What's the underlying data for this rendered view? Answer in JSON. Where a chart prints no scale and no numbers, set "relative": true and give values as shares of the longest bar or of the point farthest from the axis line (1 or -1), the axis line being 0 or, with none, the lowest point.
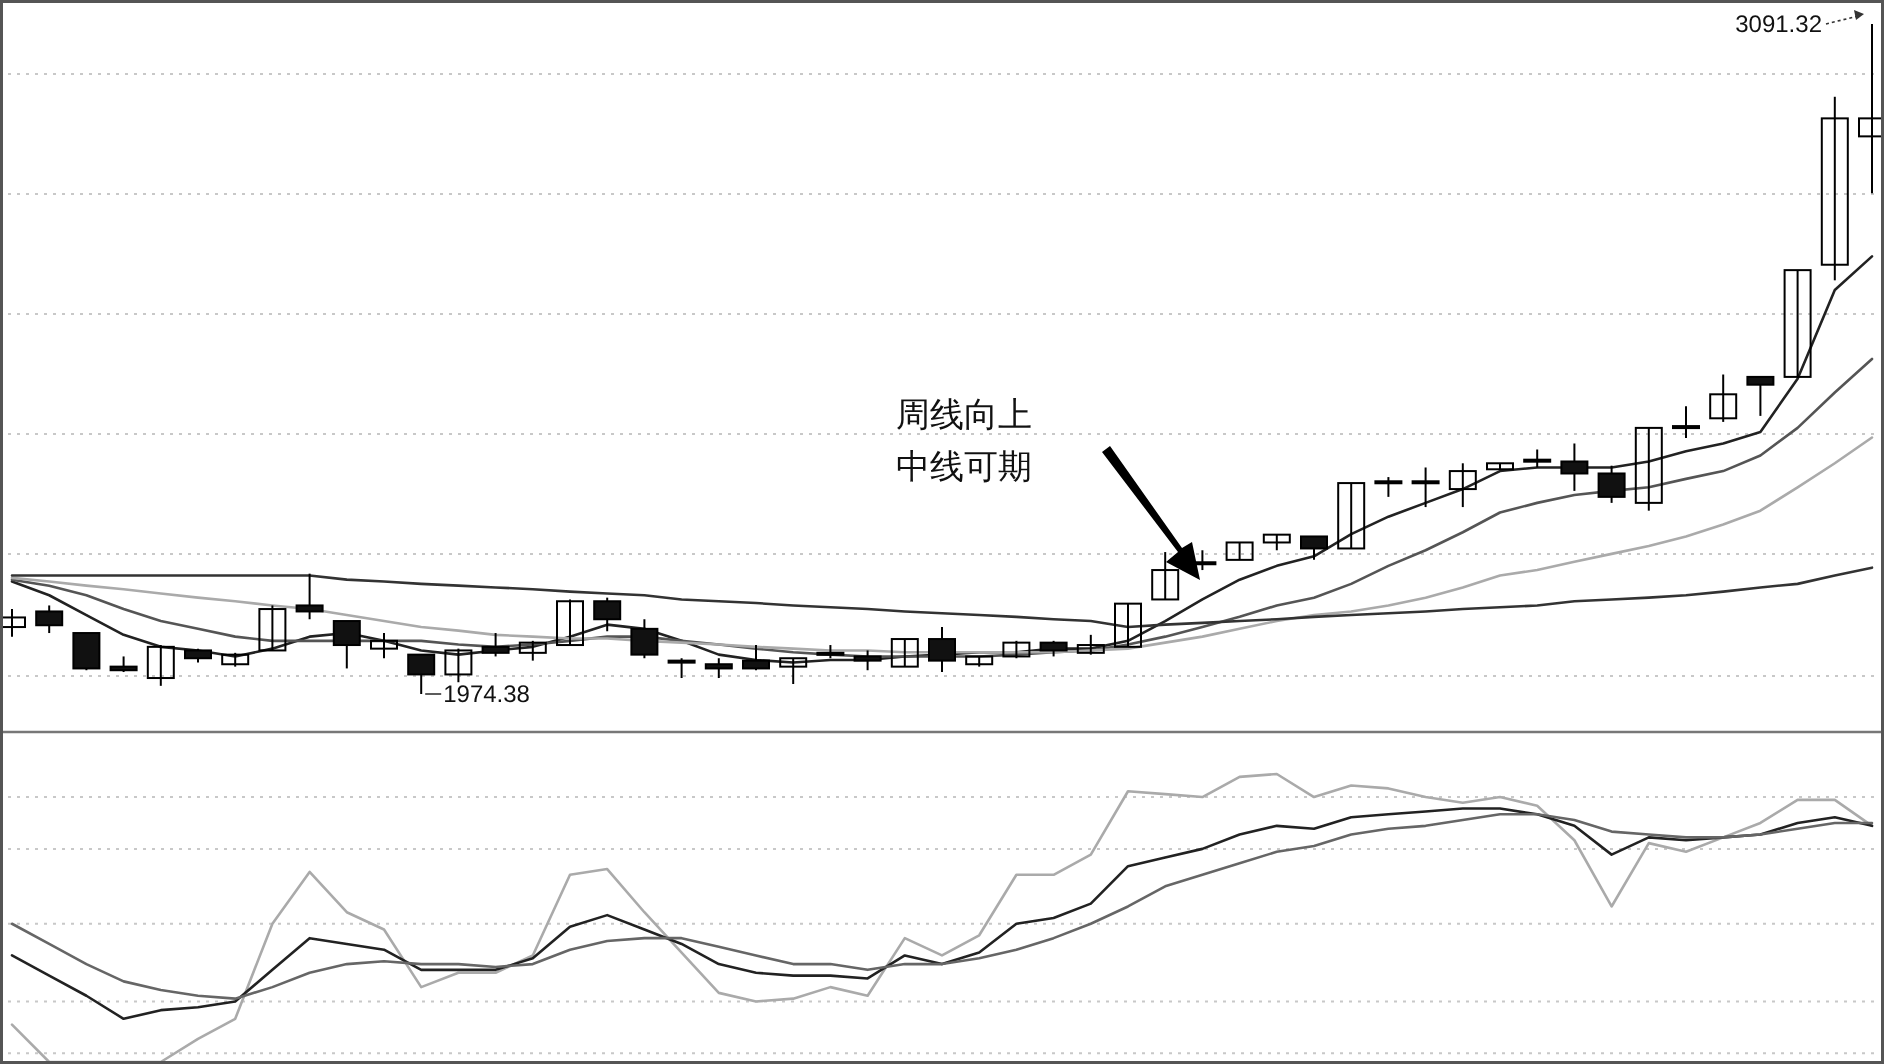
{
  "chart_data": [
    {
      "type": "candlestick",
      "categories": [
        null,
        null,
        null,
        null,
        null,
        null,
        null,
        null,
        null,
        null,
        null,
        null,
        null,
        null,
        null,
        null,
        null,
        null,
        null,
        null,
        null,
        null,
        null,
        null,
        null,
        null,
        null,
        null,
        null,
        null,
        null,
        null,
        null,
        null,
        null,
        null,
        null,
        null,
        null,
        null,
        null,
        null,
        null,
        null,
        null,
        null,
        null,
        null,
        null,
        null,
        null
      ],
      "ohlc": [
        [
          2086,
          2116,
          2070,
          2102
        ],
        [
          2112,
          2122,
          2076,
          2089
        ],
        [
          2076,
          2076,
          2014,
          2017
        ],
        [
          2020,
          2037,
          2011,
          2014
        ],
        [
          2001,
          2056,
          1988,
          2053
        ],
        [
          2047,
          2050,
          2027,
          2034
        ],
        [
          2024,
          2043,
          2020,
          2040
        ],
        [
          2047,
          2122,
          2047,
          2116
        ],
        [
          2122,
          2175,
          2099,
          2112
        ],
        [
          2096,
          2096,
          2017,
          2056
        ],
        [
          2050,
          2076,
          2034,
          2063
        ],
        [
          2040,
          2040,
          1974.38,
          2007
        ],
        [
          2007,
          2050,
          1994,
          2047
        ],
        [
          2053,
          2076,
          2037,
          2043
        ],
        [
          2043,
          2063,
          2030,
          2060
        ],
        [
          2056,
          2132,
          2056,
          2129
        ],
        [
          2129,
          2135,
          2079,
          2099
        ],
        [
          2083,
          2099,
          2034,
          2040
        ],
        [
          2030,
          2034,
          2001,
          2027
        ],
        [
          2024,
          2034,
          2001,
          2017
        ],
        [
          2030,
          2056,
          2014,
          2017
        ],
        [
          2020,
          2034,
          1991,
          2034
        ],
        [
          2042,
          2056,
          2034,
          2043
        ],
        [
          2037,
          2047,
          2014,
          2030
        ],
        [
          2020,
          2066,
          2020,
          2066
        ],
        [
          2066,
          2086,
          2011,
          2030
        ],
        [
          2024,
          2037,
          2020,
          2037
        ],
        [
          2037,
          2063,
          2034,
          2060
        ],
        [
          2060,
          2063,
          2037,
          2047
        ],
        [
          2043,
          2073,
          2040,
          2056
        ],
        [
          2053,
          2125,
          2053,
          2125
        ],
        [
          2132,
          2211,
          2132,
          2181
        ],
        [
          2191,
          2214,
          2181,
          2194
        ],
        [
          2198,
          2227,
          2198,
          2227
        ],
        [
          2227,
          2240,
          2214,
          2240
        ],
        [
          2237,
          2237,
          2198,
          2217
        ],
        [
          2217,
          2326,
          2217,
          2326
        ],
        [
          2326,
          2336,
          2303,
          2329
        ],
        [
          2329,
          2352,
          2286,
          2326
        ],
        [
          2316,
          2359,
          2286,
          2346
        ],
        [
          2349,
          2359,
          2349,
          2359
        ],
        [
          2362,
          2382,
          2352,
          2365
        ],
        [
          2362,
          2392,
          2313,
          2342
        ],
        [
          2342,
          2355,
          2293,
          2303
        ],
        [
          2293,
          2418,
          2280,
          2418
        ],
        [
          2418,
          2454,
          2401,
          2421
        ],
        [
          2434,
          2507,
          2428,
          2474
        ],
        [
          2503,
          2503,
          2438,
          2490
        ],
        [
          2503,
          2681,
          2503,
          2681
        ],
        [
          2690,
          2970,
          2664,
          2934
        ],
        [
          2904,
          3091.32,
          2809,
          2934
        ]
      ],
      "series": [
        {
          "type": "line",
          "color": "#222222",
          "values": [
            2162,
            2139,
            2106,
            2073,
            2053,
            2047,
            2037,
            2050,
            2070,
            2076,
            2063,
            2047,
            2040,
            2047,
            2053,
            2070,
            2090,
            2083,
            2063,
            2040,
            2031,
            2027,
            2031,
            2031,
            2037,
            2040,
            2044,
            2044,
            2050,
            2050,
            2063,
            2096,
            2132,
            2165,
            2188,
            2204,
            2241,
            2270,
            2293,
            2316,
            2346,
            2352,
            2352,
            2352,
            2362,
            2379,
            2392,
            2411,
            2500,
            2648,
            2704
          ]
        },
        {
          "type": "line",
          "color": "#555555",
          "values": [
            2165,
            2155,
            2139,
            2116,
            2096,
            2083,
            2070,
            2063,
            2063,
            2063,
            2063,
            2063,
            2057,
            2053,
            2057,
            2063,
            2070,
            2070,
            2063,
            2057,
            2050,
            2044,
            2040,
            2037,
            2037,
            2037,
            2037,
            2040,
            2044,
            2047,
            2057,
            2070,
            2086,
            2103,
            2122,
            2135,
            2158,
            2188,
            2214,
            2244,
            2277,
            2293,
            2306,
            2313,
            2319,
            2333,
            2346,
            2372,
            2418,
            2477,
            2533
          ]
        },
        {
          "type": "line",
          "color": "#aaaaaa",
          "values": [
            2168,
            2162,
            2155,
            2149,
            2142,
            2135,
            2129,
            2122,
            2116,
            2106,
            2096,
            2086,
            2080,
            2073,
            2070,
            2067,
            2067,
            2063,
            2060,
            2057,
            2053,
            2050,
            2047,
            2047,
            2044,
            2044,
            2044,
            2044,
            2044,
            2047,
            2050,
            2060,
            2070,
            2083,
            2096,
            2106,
            2112,
            2122,
            2135,
            2152,
            2172,
            2181,
            2195,
            2208,
            2221,
            2237,
            2257,
            2280,
            2319,
            2359,
            2402
          ]
        },
        {
          "type": "line",
          "color": "#333333",
          "values": [
            2172,
            2172,
            2172,
            2172,
            2172,
            2172,
            2172,
            2172,
            2172,
            2165,
            2162,
            2158,
            2155,
            2152,
            2149,
            2145,
            2142,
            2139,
            2132,
            2129,
            2126,
            2122,
            2119,
            2116,
            2112,
            2109,
            2106,
            2103,
            2099,
            2096,
            2086,
            2090,
            2093,
            2096,
            2099,
            2103,
            2106,
            2109,
            2112,
            2116,
            2119,
            2122,
            2129,
            2132,
            2135,
            2139,
            2145,
            2152,
            2158,
            2172,
            2185
          ]
        }
      ],
      "grid": true,
      "annotations": [
        "周线向上",
        "中线可期",
        "3091.32",
        "1974.38"
      ]
    },
    {
      "type": "line",
      "relative": true,
      "grid": true,
      "categories": [
        null,
        null,
        null,
        null,
        null,
        null,
        null,
        null,
        null,
        null,
        null,
        null,
        null,
        null,
        null,
        null,
        null,
        null,
        null,
        null,
        null,
        null,
        null,
        null,
        null,
        null,
        null,
        null,
        null,
        null,
        null,
        null,
        null,
        null,
        null,
        null,
        null,
        null,
        null,
        null,
        null,
        null,
        null,
        null,
        null,
        null,
        null,
        null,
        null,
        null,
        null
      ],
      "series": [
        {
          "color": "#aaaaaa",
          "values": [
            0.13,
            0,
            0,
            0,
            0,
            0.08,
            0.15,
            0.48,
            0.66,
            0.52,
            0.46,
            0.26,
            0.31,
            0.31,
            0.37,
            0.65,
            0.67,
            0.52,
            0.38,
            0.24,
            0.21,
            0.22,
            0.26,
            0.23,
            0.43,
            0.37,
            0.44,
            0.65,
            0.65,
            0.72,
            0.94,
            0.93,
            0.92,
            0.99,
            1,
            0.92,
            0.96,
            0.95,
            0.92,
            0.9,
            0.92,
            0.89,
            0.77,
            0.54,
            0.76,
            0.73,
            0.78,
            0.83,
            0.91,
            0.91,
            0.82
          ]
        },
        {
          "color": "#222222",
          "values": [
            0.37,
            0.3,
            0.23,
            0.15,
            0.18,
            0.19,
            0.21,
            0.32,
            0.43,
            0.41,
            0.39,
            0.32,
            0.32,
            0.32,
            0.36,
            0.47,
            0.51,
            0.46,
            0.41,
            0.34,
            0.31,
            0.3,
            0.3,
            0.29,
            0.37,
            0.34,
            0.38,
            0.48,
            0.5,
            0.55,
            0.68,
            0.71,
            0.74,
            0.79,
            0.82,
            0.81,
            0.85,
            0.86,
            0.87,
            0.88,
            0.88,
            0.86,
            0.82,
            0.72,
            0.78,
            0.77,
            0.78,
            0.79,
            0.83,
            0.85,
            0.82
          ]
        },
        {
          "color": "#666666",
          "values": [
            0.48,
            0.41,
            0.34,
            0.28,
            0.25,
            0.23,
            0.22,
            0.26,
            0.31,
            0.34,
            0.35,
            0.34,
            0.34,
            0.33,
            0.34,
            0.39,
            0.42,
            0.43,
            0.43,
            0.4,
            0.37,
            0.34,
            0.34,
            0.32,
            0.34,
            0.34,
            0.36,
            0.39,
            0.43,
            0.48,
            0.54,
            0.61,
            0.65,
            0.69,
            0.73,
            0.75,
            0.79,
            0.81,
            0.82,
            0.84,
            0.86,
            0.86,
            0.84,
            0.8,
            0.79,
            0.78,
            0.78,
            0.79,
            0.81,
            0.83,
            0.83
          ]
        }
      ]
    }
  ]
}
